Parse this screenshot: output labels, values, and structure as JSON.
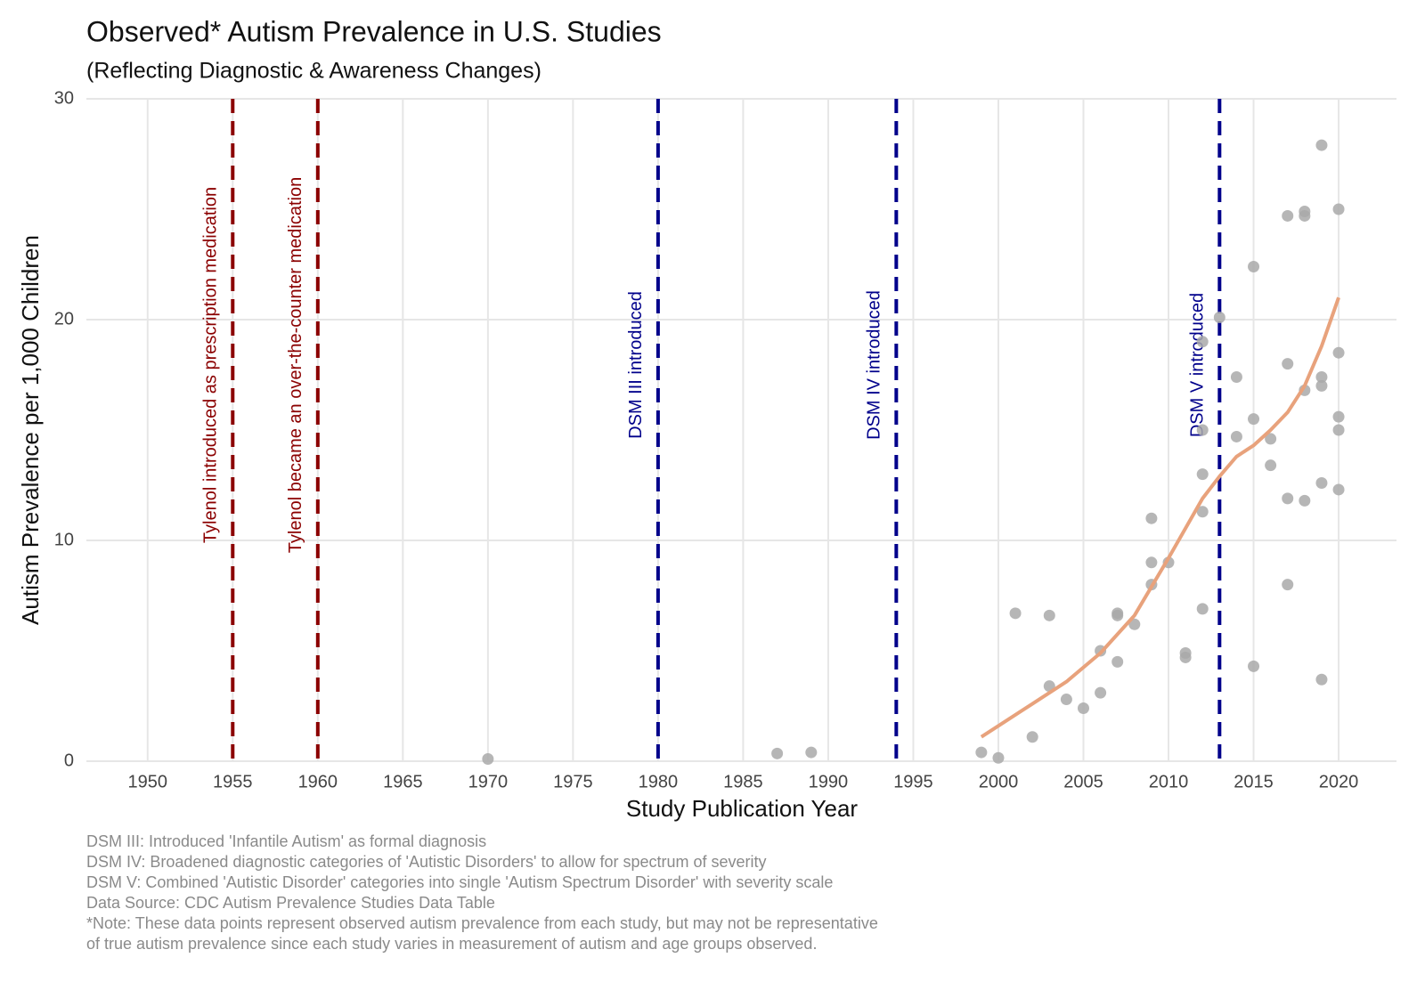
{
  "chart_data": {
    "type": "scatter",
    "title": "Observed* Autism Prevalence in U.S. Studies",
    "subtitle": "(Reflecting Diagnostic & Awareness Changes)",
    "x_label": "Study Publication Year",
    "y_label": "Autism Prevalence per 1,000 Children",
    "xlim": [
      1946.4,
      2023.4
    ],
    "ylim": [
      0,
      30
    ],
    "xticks": [
      1950,
      1955,
      1960,
      1965,
      1970,
      1975,
      1980,
      1985,
      1990,
      1995,
      2000,
      2005,
      2010,
      2015,
      2020
    ],
    "yticks": [
      0,
      10,
      20,
      30
    ],
    "grid": true,
    "series": [
      {
        "type": "scatter",
        "color": "#a9a9a9",
        "x": [
          1970,
          1987,
          1989,
          1999,
          2000,
          2001,
          2002,
          2003,
          2003,
          2004,
          2005,
          2006,
          2006,
          2007,
          2007,
          2007,
          2008,
          2009,
          2009,
          2009,
          2010,
          2011,
          2011,
          2012,
          2012,
          2012,
          2012,
          2012,
          2013,
          2014,
          2014,
          2015,
          2015,
          2015,
          2016,
          2016,
          2017,
          2017,
          2017,
          2017,
          2018,
          2018,
          2018,
          2018,
          2019,
          2019,
          2019,
          2019,
          2019,
          2020,
          2020,
          2020,
          2020,
          2020
        ],
        "values": [
          0.1,
          0.35,
          0.4,
          0.4,
          0.15,
          6.7,
          1.1,
          6.6,
          3.4,
          2.8,
          2.4,
          5.0,
          3.1,
          6.7,
          6.6,
          4.5,
          6.2,
          11.0,
          9.0,
          8.0,
          9.0,
          4.9,
          4.7,
          19.0,
          15.0,
          13.0,
          11.3,
          6.9,
          20.1,
          17.4,
          14.7,
          22.4,
          15.5,
          4.3,
          14.6,
          13.4,
          24.7,
          18.0,
          11.9,
          8.0,
          24.9,
          24.7,
          16.8,
          11.8,
          27.9,
          17.4,
          17.0,
          12.6,
          3.7,
          25.0,
          18.5,
          15.6,
          15.0,
          12.3
        ]
      },
      {
        "type": "line",
        "color": "#e8a27c",
        "x": [
          1999,
          2000,
          2002,
          2004,
          2006,
          2008,
          2010,
          2012,
          2013,
          2014,
          2015,
          2016,
          2017,
          2018,
          2019,
          2020
        ],
        "values": [
          1.1,
          1.6,
          2.6,
          3.6,
          4.9,
          6.6,
          9.2,
          11.9,
          12.9,
          13.8,
          14.3,
          15.0,
          15.8,
          17.0,
          18.8,
          21.0
        ]
      }
    ],
    "vlines": [
      {
        "x": 1955,
        "color": "#8b0000",
        "label": "Tylenol introduced as prescription medication"
      },
      {
        "x": 1960,
        "color": "#8b0000",
        "label": "Tylenol became an over-the-counter medication"
      },
      {
        "x": 1980,
        "color": "#00008b",
        "label": "DSM III introduced"
      },
      {
        "x": 1994,
        "color": "#00008b",
        "label": "DSM IV introduced"
      },
      {
        "x": 2013,
        "color": "#00008b",
        "label": "DSM V introduced"
      }
    ],
    "footnotes": [
      "DSM III: Introduced 'Infantile Autism' as formal diagnosis",
      "DSM IV: Broadened diagnostic categories of 'Autistic Disorders' to allow for spectrum of severity",
      "DSM V: Combined 'Autistic Disorder' categories into single 'Autism Spectrum Disorder' with severity scale",
      "Data Source: CDC Autism Prevalence Studies Data Table",
      "*Note: These data points represent observed autism prevalence from each study, but may not be representative",
      "of true autism prevalence since each study varies in measurement of autism and age groups observed."
    ]
  }
}
